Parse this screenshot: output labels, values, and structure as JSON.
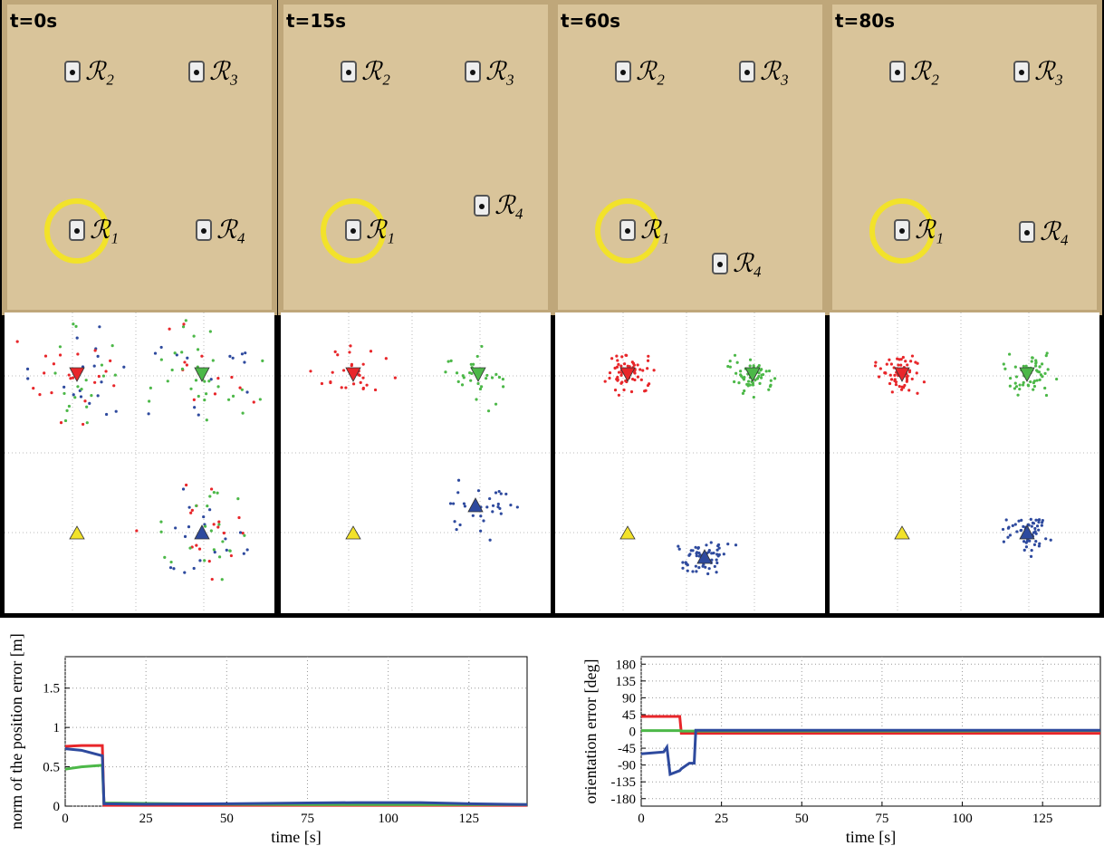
{
  "panels": [
    {
      "time": "t=0s",
      "robots": [
        "ℛ₁",
        "ℛ₂",
        "ℛ₃",
        "ℛ₄"
      ]
    },
    {
      "time": "t=15s",
      "robots": [
        "ℛ₁",
        "ℛ₂",
        "ℛ₃",
        "ℛ₄"
      ]
    },
    {
      "time": "t=60s",
      "robots": [
        "ℛ₁",
        "ℛ₂",
        "ℛ₃",
        "ℛ₄"
      ]
    },
    {
      "time": "t=80s",
      "robots": [
        "ℛ₁",
        "ℛ₂",
        "ℛ₃",
        "ℛ₄"
      ]
    }
  ],
  "chart_data": [
    {
      "type": "line",
      "xlabel": "time [s]",
      "ylabel": "norm of the position error [m]",
      "x": [
        0,
        5,
        11.5,
        12,
        25,
        50,
        75,
        90,
        110,
        125,
        143
      ],
      "xlim": [
        0,
        143
      ],
      "xticks": [
        0,
        25,
        50,
        75,
        100,
        125
      ],
      "ylim": [
        0,
        1.9
      ],
      "yticks": [
        0,
        0.5,
        1,
        1.5
      ],
      "grid": true,
      "series": [
        {
          "color": "#e8262a",
          "values": [
            0.76,
            0.77,
            0.77,
            0.01,
            0.01,
            0.01,
            0.01,
            0.01,
            0.01,
            0.01,
            0.01
          ]
        },
        {
          "color": "#4cb848",
          "values": [
            0.47,
            0.5,
            0.52,
            0.04,
            0.035,
            0.025,
            0.02,
            0.02,
            0.02,
            0.02,
            0.02
          ]
        },
        {
          "color": "#2e4a9e",
          "values": [
            0.73,
            0.71,
            0.64,
            0.03,
            0.025,
            0.03,
            0.04,
            0.045,
            0.045,
            0.03,
            0.02
          ]
        }
      ]
    },
    {
      "type": "line",
      "xlabel": "time [s]",
      "ylabel": "orientation error [deg]",
      "x": [
        0,
        7,
        8,
        9,
        12,
        12.5,
        15,
        16.5,
        17,
        25,
        50,
        75,
        100,
        125,
        143
      ],
      "xlim": [
        0,
        143
      ],
      "xticks": [
        0,
        25,
        50,
        75,
        100,
        125
      ],
      "ylim": [
        -200,
        200
      ],
      "yticks": [
        -180,
        -135,
        -90,
        -45,
        0,
        45,
        90,
        135,
        180
      ],
      "grid": true,
      "series": [
        {
          "color": "#e8262a",
          "values": [
            40,
            40,
            40,
            40,
            40,
            -5,
            -5,
            -5,
            -5,
            -5,
            -5,
            -5,
            -5,
            -5,
            -5
          ]
        },
        {
          "color": "#4cb848",
          "values": [
            2,
            2,
            2,
            2,
            2,
            1,
            1,
            1,
            1,
            1,
            1,
            1,
            1,
            2,
            2
          ]
        },
        {
          "color": "#2e4a9e",
          "values": [
            -60,
            -55,
            -42,
            -115,
            -105,
            -100,
            -85,
            -85,
            3,
            3,
            3,
            3,
            3,
            3,
            3
          ]
        }
      ]
    }
  ]
}
